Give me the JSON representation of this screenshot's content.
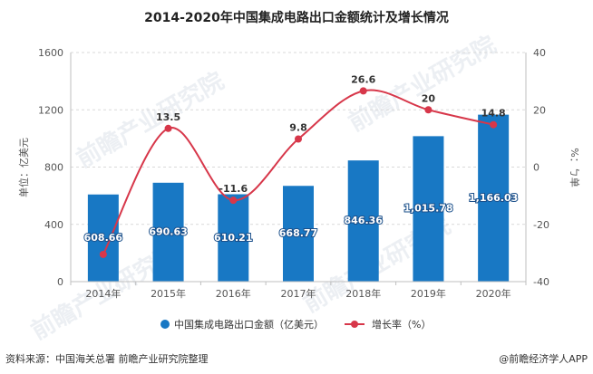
{
  "title": "2014-2020年中国集成电路出口金额统计及增长情况",
  "source": "资料来源：中国海关总署 前瞻产业研究院整理",
  "brand": "@前瞻经济学人APP",
  "watermark": "前瞻产业研究院",
  "colors": {
    "bar": "#1878c4",
    "line": "#d7374a",
    "grid": "#d9d9d9",
    "axis": "#bfbfbf"
  },
  "chart_data": {
    "type": "bar",
    "categories": [
      "2014年",
      "2015年",
      "2016年",
      "2017年",
      "2018年",
      "2019年",
      "2020年"
    ],
    "series": [
      {
        "name": "中国集成电路出口金额（亿美元）",
        "type": "bar",
        "axis": "left",
        "values": [
          608.66,
          690.63,
          610.21,
          668.77,
          846.36,
          1015.78,
          1166.03
        ],
        "labels": [
          "608.66",
          "690.63",
          "610.21",
          "668.77",
          "846.36",
          "1,015.78",
          "1,166.03"
        ]
      },
      {
        "name": "增长率（%）",
        "type": "line",
        "axis": "right",
        "values": [
          -30.5,
          13.5,
          -11.6,
          9.8,
          26.6,
          20,
          14.8
        ],
        "labels": [
          "",
          "13.5",
          "-11.6",
          "9.8",
          "26.6",
          "20",
          "14.8"
        ]
      }
    ],
    "ylabel_left": "单位：亿美元",
    "ylabel_right": "%：ㄅ单",
    "ylim_left": [
      0,
      1600
    ],
    "yticks_left": [
      "0",
      "400",
      "800",
      "1200",
      "1600"
    ],
    "ylim_right": [
      -40,
      40
    ],
    "yticks_right": [
      "-40",
      "-20",
      "0",
      "20",
      "40"
    ],
    "grid": true,
    "legend_position": "bottom"
  }
}
